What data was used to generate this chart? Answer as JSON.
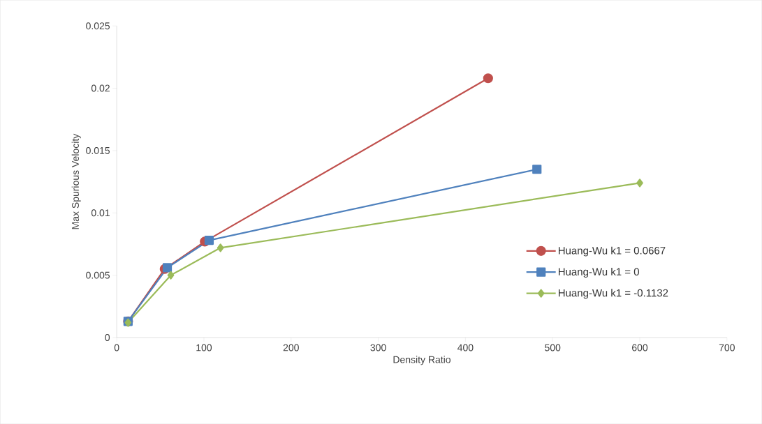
{
  "chart_data": {
    "type": "line",
    "xlabel": "Density Ratio",
    "ylabel": "Max Spurious Velocity",
    "xlim": [
      0,
      700
    ],
    "xticks": [
      0,
      100,
      200,
      300,
      400,
      500,
      600,
      700
    ],
    "ylim": [
      0,
      0.025
    ],
    "yticks": [
      0,
      0.005,
      0.01,
      0.015,
      0.02,
      0.025
    ],
    "grid": false,
    "legend": "right",
    "line_style": "solid",
    "series": [
      {
        "name": "Huang-Wu k1 = 0.0667",
        "color": "#c0504d",
        "marker": "circle",
        "x": [
          13,
          55,
          101,
          426
        ],
        "values": [
          0.0013,
          0.0055,
          0.0077,
          0.0208
        ]
      },
      {
        "name": "Huang-Wu k1 = 0",
        "color": "#4f81bd",
        "marker": "square",
        "x": [
          13,
          58,
          106,
          482
        ],
        "values": [
          0.0013,
          0.0056,
          0.0078,
          0.0135
        ]
      },
      {
        "name": "Huang-Wu k1 = -0.1132",
        "color": "#9bbb59",
        "marker": "diamond",
        "x": [
          13,
          62,
          119,
          600
        ],
        "values": [
          0.0012,
          0.005,
          0.0072,
          0.0124
        ]
      }
    ]
  }
}
